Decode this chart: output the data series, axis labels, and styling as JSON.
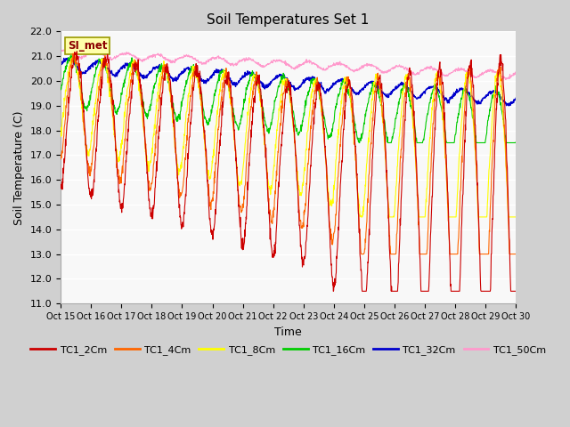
{
  "title": "Soil Temperatures Set 1",
  "xlabel": "Time",
  "ylabel": "Soil Temperature (C)",
  "ylim": [
    11.0,
    22.0
  ],
  "yticks": [
    11.0,
    12.0,
    13.0,
    14.0,
    15.0,
    16.0,
    17.0,
    18.0,
    19.0,
    20.0,
    21.0,
    22.0
  ],
  "xtick_labels": [
    "Oct 15",
    "Oct 16",
    "Oct 17",
    "Oct 18",
    "Oct 19",
    "Oct 20",
    "Oct 21",
    "Oct 22",
    "Oct 23",
    "Oct 24",
    "Oct 25",
    "Oct 26",
    "Oct 27",
    "Oct 28",
    "Oct 29",
    "Oct 30"
  ],
  "series_colors": {
    "TC1_2Cm": "#cc0000",
    "TC1_4Cm": "#ff6600",
    "TC1_8Cm": "#ffff00",
    "TC1_16Cm": "#00cc00",
    "TC1_32Cm": "#0000cc",
    "TC1_50Cm": "#ff99cc"
  },
  "legend_label": "SI_met",
  "fig_bg": "#d0d0d0",
  "plot_bg": "#f8f8f8",
  "grid_color": "#d8d8d8"
}
